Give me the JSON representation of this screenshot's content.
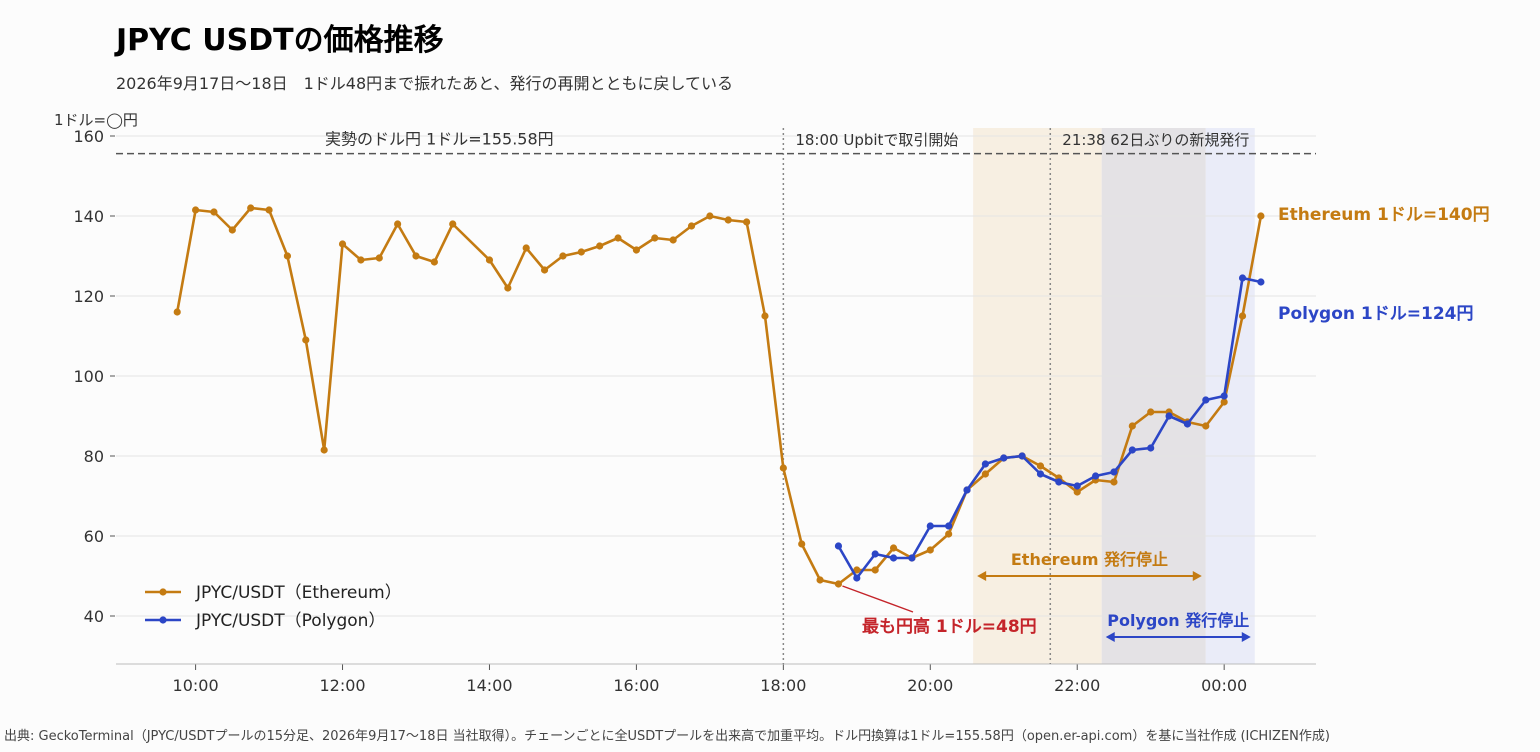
{
  "chart_data": {
    "type": "line",
    "title": "JPYC USDTの価格推移",
    "subtitle": "2026年9月17日〜18日　1ドル48円まで振れたあと、発行の再開とともに戻している",
    "ylabel": "1ドル=◯円",
    "ylim": [
      28,
      162
    ],
    "yticks": [
      {
        "value": 40,
        "label": "40"
      },
      {
        "value": 60,
        "label": "60"
      },
      {
        "value": 80,
        "label": "80"
      },
      {
        "value": 100,
        "label": "100"
      },
      {
        "value": 120,
        "label": "120"
      },
      {
        "value": 140,
        "label": "140"
      },
      {
        "value": 160,
        "label": "160"
      }
    ],
    "xlim": [
      "2026-09-17T08:55",
      "2026-09-18T01:15"
    ],
    "xticks": [
      {
        "value": "2026-09-17T10:00",
        "label": "10:00"
      },
      {
        "value": "2026-09-17T12:00",
        "label": "12:00"
      },
      {
        "value": "2026-09-17T14:00",
        "label": "14:00"
      },
      {
        "value": "2026-09-17T16:00",
        "label": "16:00"
      },
      {
        "value": "2026-09-17T18:00",
        "label": "18:00"
      },
      {
        "value": "2026-09-17T20:00",
        "label": "20:00"
      },
      {
        "value": "2026-09-17T22:00",
        "label": "22:00"
      },
      {
        "value": "2026-09-18T00:00",
        "label": "00:00"
      }
    ],
    "grid": true,
    "legend": "bottom-left",
    "reference_line": {
      "value": 155.58,
      "label": "実勢のドル円 1ドル=155.58円"
    },
    "events": [
      {
        "x": "2026-09-17T18:00",
        "label": "18:00 Upbitで取引開始"
      },
      {
        "x": "2026-09-17T21:38",
        "label": "21:38 62日ぶりの新規発行"
      }
    ],
    "shaded_periods": [
      {
        "start": "2026-09-17T20:35",
        "end": "2026-09-17T22:20",
        "color": "#f7efe2"
      },
      {
        "start": "2026-09-17T22:20",
        "end": "2026-09-17T23:45",
        "color": "#e4e2e5"
      },
      {
        "start": "2026-09-17T23:45",
        "end": "2026-09-18T00:25",
        "color": "#eaecf8"
      }
    ],
    "range_annotations": [
      {
        "start": "2026-09-17T20:35",
        "end": "2026-09-17T23:45",
        "label": "Ethereum 発行停止",
        "color": "#c47b12"
      },
      {
        "start": "2026-09-17T22:20",
        "end": "2026-09-18T00:25",
        "label": "Polygon 発行停止",
        "color": "#2c46c6"
      }
    ],
    "series": [
      {
        "name": "JPYC/USDT（Ethereum）",
        "color": "#c47b12",
        "end_label": "Ethereum 1ドル=140円",
        "points": [
          [
            "2026-09-17T09:45",
            116
          ],
          [
            "2026-09-17T10:00",
            141.5
          ],
          [
            "2026-09-17T10:15",
            141
          ],
          [
            "2026-09-17T10:30",
            136.5
          ],
          [
            "2026-09-17T10:45",
            142
          ],
          [
            "2026-09-17T11:00",
            141.5
          ],
          [
            "2026-09-17T11:15",
            130
          ],
          [
            "2026-09-17T11:30",
            109
          ],
          [
            "2026-09-17T11:45",
            81.5
          ],
          [
            "2026-09-17T12:00",
            133
          ],
          [
            "2026-09-17T12:15",
            129
          ],
          [
            "2026-09-17T12:30",
            129.5
          ],
          [
            "2026-09-17T12:45",
            138
          ],
          [
            "2026-09-17T13:00",
            130
          ],
          [
            "2026-09-17T13:15",
            128.5
          ],
          [
            "2026-09-17T13:30",
            138
          ],
          [
            "2026-09-17T14:00",
            129
          ],
          [
            "2026-09-17T14:15",
            122
          ],
          [
            "2026-09-17T14:30",
            132
          ],
          [
            "2026-09-17T14:45",
            126.5
          ],
          [
            "2026-09-17T15:00",
            130
          ],
          [
            "2026-09-17T15:15",
            131
          ],
          [
            "2026-09-17T15:30",
            132.5
          ],
          [
            "2026-09-17T15:45",
            134.5
          ],
          [
            "2026-09-17T16:00",
            131.5
          ],
          [
            "2026-09-17T16:15",
            134.5
          ],
          [
            "2026-09-17T16:30",
            134
          ],
          [
            "2026-09-17T16:45",
            137.5
          ],
          [
            "2026-09-17T17:00",
            140
          ],
          [
            "2026-09-17T17:15",
            139
          ],
          [
            "2026-09-17T17:30",
            138.5
          ],
          [
            "2026-09-17T17:45",
            115
          ],
          [
            "2026-09-17T18:00",
            77
          ],
          [
            "2026-09-17T18:15",
            58
          ],
          [
            "2026-09-17T18:30",
            49
          ],
          [
            "2026-09-17T18:45",
            48
          ],
          [
            "2026-09-17T19:00",
            51.5
          ],
          [
            "2026-09-17T19:15",
            51.5
          ],
          [
            "2026-09-17T19:30",
            57
          ],
          [
            "2026-09-17T19:45",
            54.5
          ],
          [
            "2026-09-17T20:00",
            56.5
          ],
          [
            "2026-09-17T20:15",
            60.5
          ],
          [
            "2026-09-17T20:30",
            71.5
          ],
          [
            "2026-09-17T20:45",
            75.5
          ],
          [
            "2026-09-17T21:00",
            79.5
          ],
          [
            "2026-09-17T21:15",
            80
          ],
          [
            "2026-09-17T21:30",
            77.5
          ],
          [
            "2026-09-17T21:45",
            74.5
          ],
          [
            "2026-09-17T22:00",
            71
          ],
          [
            "2026-09-17T22:15",
            74
          ],
          [
            "2026-09-17T22:30",
            73.5
          ],
          [
            "2026-09-17T22:45",
            87.5
          ],
          [
            "2026-09-17T23:00",
            91
          ],
          [
            "2026-09-17T23:15",
            91
          ],
          [
            "2026-09-17T23:30",
            88.5
          ],
          [
            "2026-09-17T23:45",
            87.5
          ],
          [
            "2026-09-18T00:00",
            93.5
          ],
          [
            "2026-09-18T00:15",
            115
          ],
          [
            "2026-09-18T00:30",
            140
          ]
        ]
      },
      {
        "name": "JPYC/USDT（Polygon）",
        "color": "#2c46c6",
        "end_label": "Polygon 1ドル=124円",
        "points": [
          [
            "2026-09-17T18:45",
            57.5
          ],
          [
            "2026-09-17T19:00",
            49.5
          ],
          [
            "2026-09-17T19:15",
            55.5
          ],
          [
            "2026-09-17T19:30",
            54.5
          ],
          [
            "2026-09-17T19:45",
            54.5
          ],
          [
            "2026-09-17T20:00",
            62.5
          ],
          [
            "2026-09-17T20:15",
            62.5
          ],
          [
            "2026-09-17T20:30",
            71.5
          ],
          [
            "2026-09-17T20:45",
            78
          ],
          [
            "2026-09-17T21:00",
            79.5
          ],
          [
            "2026-09-17T21:15",
            80
          ],
          [
            "2026-09-17T21:30",
            75.5
          ],
          [
            "2026-09-17T21:45",
            73.5
          ],
          [
            "2026-09-17T22:00",
            72.5
          ],
          [
            "2026-09-17T22:15",
            75
          ],
          [
            "2026-09-17T22:30",
            76
          ],
          [
            "2026-09-17T22:45",
            81.5
          ],
          [
            "2026-09-17T23:00",
            82
          ],
          [
            "2026-09-17T23:15",
            90
          ],
          [
            "2026-09-17T23:30",
            88
          ],
          [
            "2026-09-17T23:45",
            94
          ],
          [
            "2026-09-18T00:00",
            95
          ],
          [
            "2026-09-18T00:15",
            124.5
          ],
          [
            "2026-09-18T00:30",
            123.5
          ]
        ]
      }
    ],
    "callout": {
      "x": "2026-09-17T18:45",
      "y": 48,
      "label": "最も円高 1ドル=48円",
      "color": "#c4242a"
    },
    "source": "出典: GeckoTerminal（JPYC/USDTプールの15分足、2026年9月17〜18日 当社取得）。チェーンごとに全USDTプールを出来高で加重平均。ドル円換算は1ドル=155.58円（open.er-api.com）を基に当社作成 (ICHIZEN作成)"
  }
}
